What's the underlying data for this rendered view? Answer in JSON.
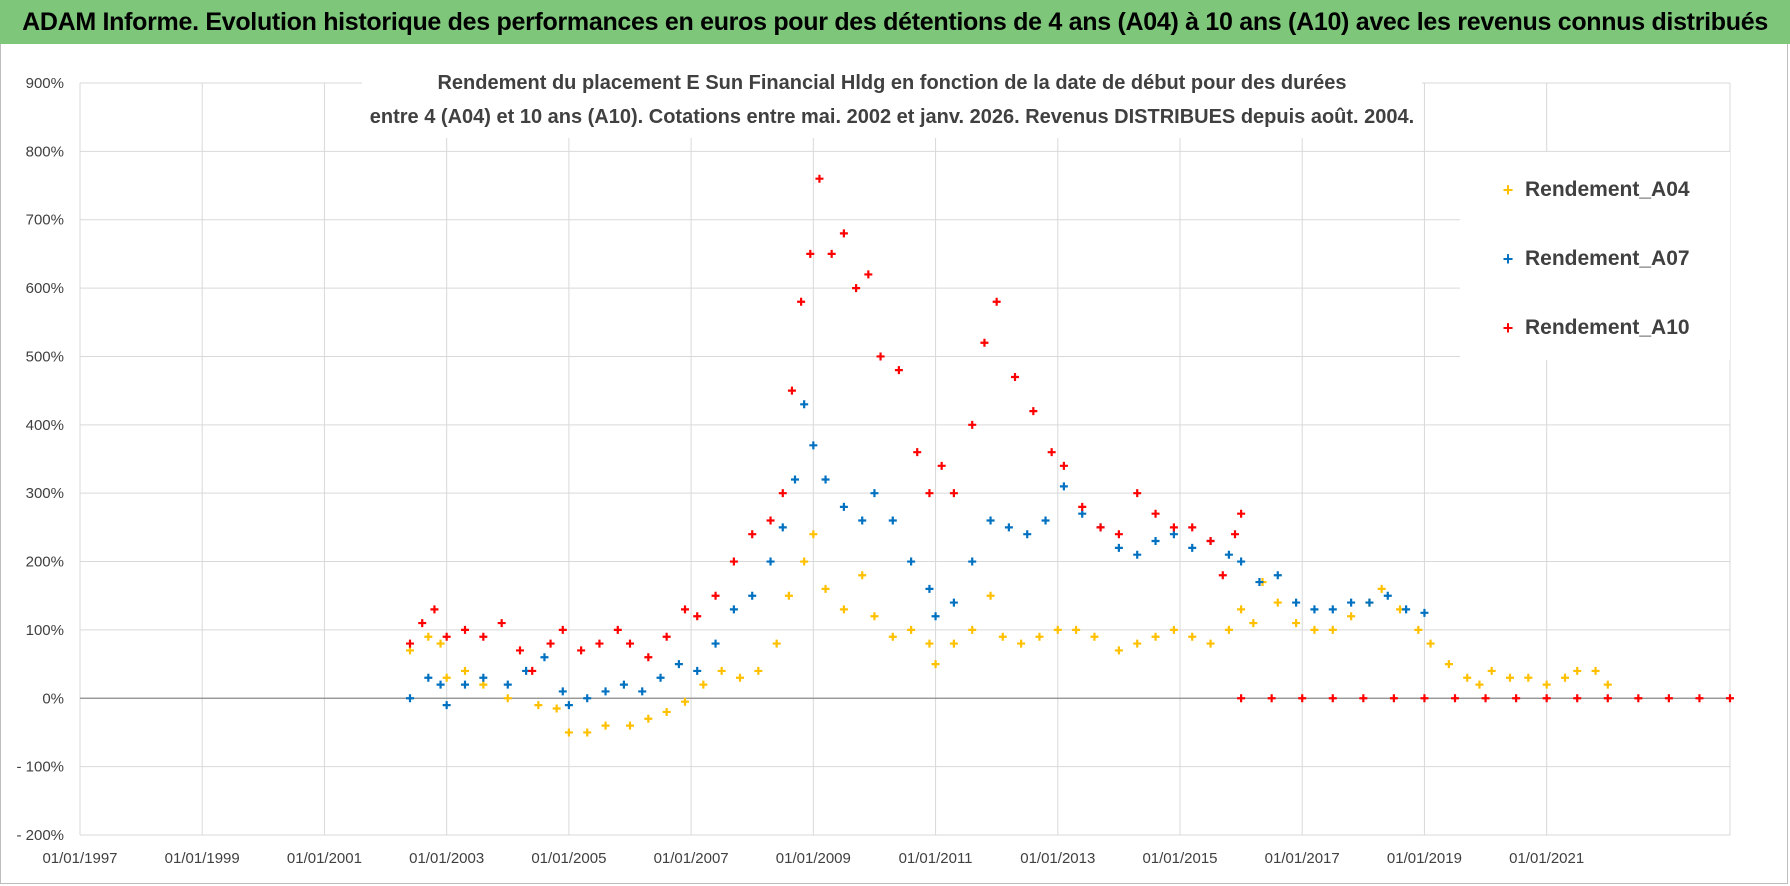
{
  "banner": {
    "title": "ADAM Informe. Evolution historique des performances en euros pour des détentions de 4 ans (A04) à 10 ans (A10) avec les revenus connus distribués",
    "background": "#7dc67a"
  },
  "chart_data": {
    "type": "scatter",
    "title_lines": [
      "Rendement du placement E Sun Financial Hldg  en fonction de la date de début pour des durées",
      "entre 4 (A04) et 10 ans (A10).  Cotations entre mai. 2002 et janv. 2026.  Revenus DISTRIBUES depuis août. 2004."
    ],
    "xlabel": "",
    "ylabel": "",
    "x_range": [
      1997.0,
      2024.0
    ],
    "ylim": [
      -200,
      900
    ],
    "x_ticks": [
      {
        "label": "01/01/1997",
        "value": 1997
      },
      {
        "label": "01/01/1999",
        "value": 1999
      },
      {
        "label": "01/01/2001",
        "value": 2001
      },
      {
        "label": "01/01/2003",
        "value": 2003
      },
      {
        "label": "01/01/2005",
        "value": 2005
      },
      {
        "label": "01/01/2007",
        "value": 2007
      },
      {
        "label": "01/01/2009",
        "value": 2009
      },
      {
        "label": "01/01/2011",
        "value": 2011
      },
      {
        "label": "01/01/2013",
        "value": 2013
      },
      {
        "label": "01/01/2015",
        "value": 2015
      },
      {
        "label": "01/01/2017",
        "value": 2017
      },
      {
        "label": "01/01/2019",
        "value": 2019
      },
      {
        "label": "01/01/2021",
        "value": 2021
      }
    ],
    "y_ticks": [
      {
        "label": "900%",
        "value": 900
      },
      {
        "label": "800%",
        "value": 800
      },
      {
        "label": "700%",
        "value": 700
      },
      {
        "label": "600%",
        "value": 600
      },
      {
        "label": "500%",
        "value": 500
      },
      {
        "label": "400%",
        "value": 400
      },
      {
        "label": "300%",
        "value": 300
      },
      {
        "label": "200%",
        "value": 200
      },
      {
        "label": "100%",
        "value": 100
      },
      {
        "label": "0%",
        "value": 0
      },
      {
        "label": "- 100%",
        "value": -100
      },
      {
        "label": "- 200%",
        "value": -200
      }
    ],
    "grid": true,
    "legend_position": "top-right",
    "series": [
      {
        "name": "Rendement_A04",
        "color": "#ffc000",
        "points": [
          [
            2002.4,
            70
          ],
          [
            2002.7,
            90
          ],
          [
            2002.9,
            80
          ],
          [
            2003.0,
            30
          ],
          [
            2003.3,
            40
          ],
          [
            2003.6,
            20
          ],
          [
            2004.0,
            0
          ],
          [
            2004.5,
            -10
          ],
          [
            2004.8,
            -15
          ],
          [
            2005.0,
            -50
          ],
          [
            2005.3,
            -50
          ],
          [
            2005.6,
            -40
          ],
          [
            2006.0,
            -40
          ],
          [
            2006.3,
            -30
          ],
          [
            2006.6,
            -20
          ],
          [
            2006.9,
            -5
          ],
          [
            2007.2,
            20
          ],
          [
            2007.5,
            40
          ],
          [
            2007.8,
            30
          ],
          [
            2008.1,
            40
          ],
          [
            2008.4,
            80
          ],
          [
            2008.6,
            150
          ],
          [
            2008.85,
            200
          ],
          [
            2009.0,
            240
          ],
          [
            2009.2,
            160
          ],
          [
            2009.5,
            130
          ],
          [
            2009.8,
            180
          ],
          [
            2010.0,
            120
          ],
          [
            2010.3,
            90
          ],
          [
            2010.6,
            100
          ],
          [
            2010.9,
            80
          ],
          [
            2011.0,
            50
          ],
          [
            2011.3,
            80
          ],
          [
            2011.6,
            100
          ],
          [
            2011.9,
            150
          ],
          [
            2012.1,
            90
          ],
          [
            2012.4,
            80
          ],
          [
            2012.7,
            90
          ],
          [
            2013.0,
            100
          ],
          [
            2013.3,
            100
          ],
          [
            2013.6,
            90
          ],
          [
            2014.0,
            70
          ],
          [
            2014.3,
            80
          ],
          [
            2014.6,
            90
          ],
          [
            2014.9,
            100
          ],
          [
            2015.2,
            90
          ],
          [
            2015.5,
            80
          ],
          [
            2015.8,
            100
          ],
          [
            2016.0,
            130
          ],
          [
            2016.2,
            110
          ],
          [
            2016.35,
            170
          ],
          [
            2016.6,
            140
          ],
          [
            2016.9,
            110
          ],
          [
            2017.2,
            100
          ],
          [
            2017.5,
            100
          ],
          [
            2017.8,
            120
          ],
          [
            2018.1,
            140
          ],
          [
            2018.3,
            160
          ],
          [
            2018.6,
            130
          ],
          [
            2018.9,
            100
          ],
          [
            2019.1,
            80
          ],
          [
            2019.4,
            50
          ],
          [
            2019.7,
            30
          ],
          [
            2019.9,
            20
          ],
          [
            2020.1,
            40
          ],
          [
            2020.4,
            30
          ],
          [
            2020.7,
            30
          ],
          [
            2021.0,
            20
          ],
          [
            2021.3,
            30
          ],
          [
            2021.5,
            40
          ],
          [
            2021.8,
            40
          ],
          [
            2022.0,
            20
          ]
        ]
      },
      {
        "name": "Rendement_A07",
        "color": "#0070c0",
        "points": [
          [
            2002.4,
            0
          ],
          [
            2002.7,
            30
          ],
          [
            2002.9,
            20
          ],
          [
            2003.0,
            -10
          ],
          [
            2003.3,
            20
          ],
          [
            2003.6,
            30
          ],
          [
            2004.0,
            20
          ],
          [
            2004.3,
            40
          ],
          [
            2004.6,
            60
          ],
          [
            2004.9,
            10
          ],
          [
            2005.0,
            -10
          ],
          [
            2005.3,
            0
          ],
          [
            2005.6,
            10
          ],
          [
            2005.9,
            20
          ],
          [
            2006.2,
            10
          ],
          [
            2006.5,
            30
          ],
          [
            2006.8,
            50
          ],
          [
            2007.1,
            40
          ],
          [
            2007.4,
            80
          ],
          [
            2007.7,
            130
          ],
          [
            2008.0,
            150
          ],
          [
            2008.3,
            200
          ],
          [
            2008.5,
            250
          ],
          [
            2008.7,
            320
          ],
          [
            2008.85,
            430
          ],
          [
            2009.0,
            370
          ],
          [
            2009.2,
            320
          ],
          [
            2009.5,
            280
          ],
          [
            2009.8,
            260
          ],
          [
            2010.0,
            300
          ],
          [
            2010.3,
            260
          ],
          [
            2010.6,
            200
          ],
          [
            2010.9,
            160
          ],
          [
            2011.0,
            120
          ],
          [
            2011.3,
            140
          ],
          [
            2011.6,
            200
          ],
          [
            2011.9,
            260
          ],
          [
            2012.2,
            250
          ],
          [
            2012.5,
            240
          ],
          [
            2012.8,
            260
          ],
          [
            2013.1,
            310
          ],
          [
            2013.4,
            270
          ],
          [
            2013.7,
            250
          ],
          [
            2014.0,
            220
          ],
          [
            2014.3,
            210
          ],
          [
            2014.6,
            230
          ],
          [
            2014.9,
            240
          ],
          [
            2015.2,
            220
          ],
          [
            2015.5,
            230
          ],
          [
            2015.8,
            210
          ],
          [
            2016.0,
            200
          ],
          [
            2016.3,
            170
          ],
          [
            2016.6,
            180
          ],
          [
            2016.9,
            140
          ],
          [
            2017.2,
            130
          ],
          [
            2017.5,
            130
          ],
          [
            2017.8,
            140
          ],
          [
            2018.1,
            140
          ],
          [
            2018.4,
            150
          ],
          [
            2018.7,
            130
          ],
          [
            2019.0,
            125
          ]
        ]
      },
      {
        "name": "Rendement_A10",
        "color": "#ff0000",
        "points": [
          [
            2002.4,
            80
          ],
          [
            2002.6,
            110
          ],
          [
            2002.8,
            130
          ],
          [
            2003.0,
            90
          ],
          [
            2003.3,
            100
          ],
          [
            2003.6,
            90
          ],
          [
            2003.9,
            110
          ],
          [
            2004.2,
            70
          ],
          [
            2004.4,
            40
          ],
          [
            2004.7,
            80
          ],
          [
            2004.9,
            100
          ],
          [
            2005.2,
            70
          ],
          [
            2005.5,
            80
          ],
          [
            2005.8,
            100
          ],
          [
            2006.0,
            80
          ],
          [
            2006.3,
            60
          ],
          [
            2006.6,
            90
          ],
          [
            2006.9,
            130
          ],
          [
            2007.1,
            120
          ],
          [
            2007.4,
            150
          ],
          [
            2007.7,
            200
          ],
          [
            2008.0,
            240
          ],
          [
            2008.3,
            260
          ],
          [
            2008.5,
            300
          ],
          [
            2008.65,
            450
          ],
          [
            2008.8,
            580
          ],
          [
            2008.95,
            650
          ],
          [
            2009.1,
            760
          ],
          [
            2009.3,
            650
          ],
          [
            2009.5,
            680
          ],
          [
            2009.7,
            600
          ],
          [
            2009.9,
            620
          ],
          [
            2010.1,
            500
          ],
          [
            2010.4,
            480
          ],
          [
            2010.7,
            360
          ],
          [
            2010.9,
            300
          ],
          [
            2011.1,
            340
          ],
          [
            2011.3,
            300
          ],
          [
            2011.6,
            400
          ],
          [
            2011.8,
            520
          ],
          [
            2012.0,
            580
          ],
          [
            2012.3,
            470
          ],
          [
            2012.6,
            420
          ],
          [
            2012.9,
            360
          ],
          [
            2013.1,
            340
          ],
          [
            2013.4,
            280
          ],
          [
            2013.7,
            250
          ],
          [
            2014.0,
            240
          ],
          [
            2014.3,
            300
          ],
          [
            2014.6,
            270
          ],
          [
            2014.9,
            250
          ],
          [
            2015.2,
            250
          ],
          [
            2015.5,
            230
          ],
          [
            2015.7,
            180
          ],
          [
            2015.9,
            240
          ],
          [
            2016.0,
            270
          ],
          [
            2016.0,
            0
          ],
          [
            2016.5,
            0
          ],
          [
            2017.0,
            0
          ],
          [
            2017.5,
            0
          ],
          [
            2018.0,
            0
          ],
          [
            2018.5,
            0
          ],
          [
            2019.0,
            0
          ],
          [
            2019.5,
            0
          ],
          [
            2020.0,
            0
          ],
          [
            2020.5,
            0
          ],
          [
            2021.0,
            0
          ],
          [
            2021.5,
            0
          ],
          [
            2022.0,
            0
          ],
          [
            2022.5,
            0
          ],
          [
            2023.0,
            0
          ],
          [
            2023.5,
            0
          ],
          [
            2024.0,
            0
          ]
        ]
      }
    ]
  }
}
